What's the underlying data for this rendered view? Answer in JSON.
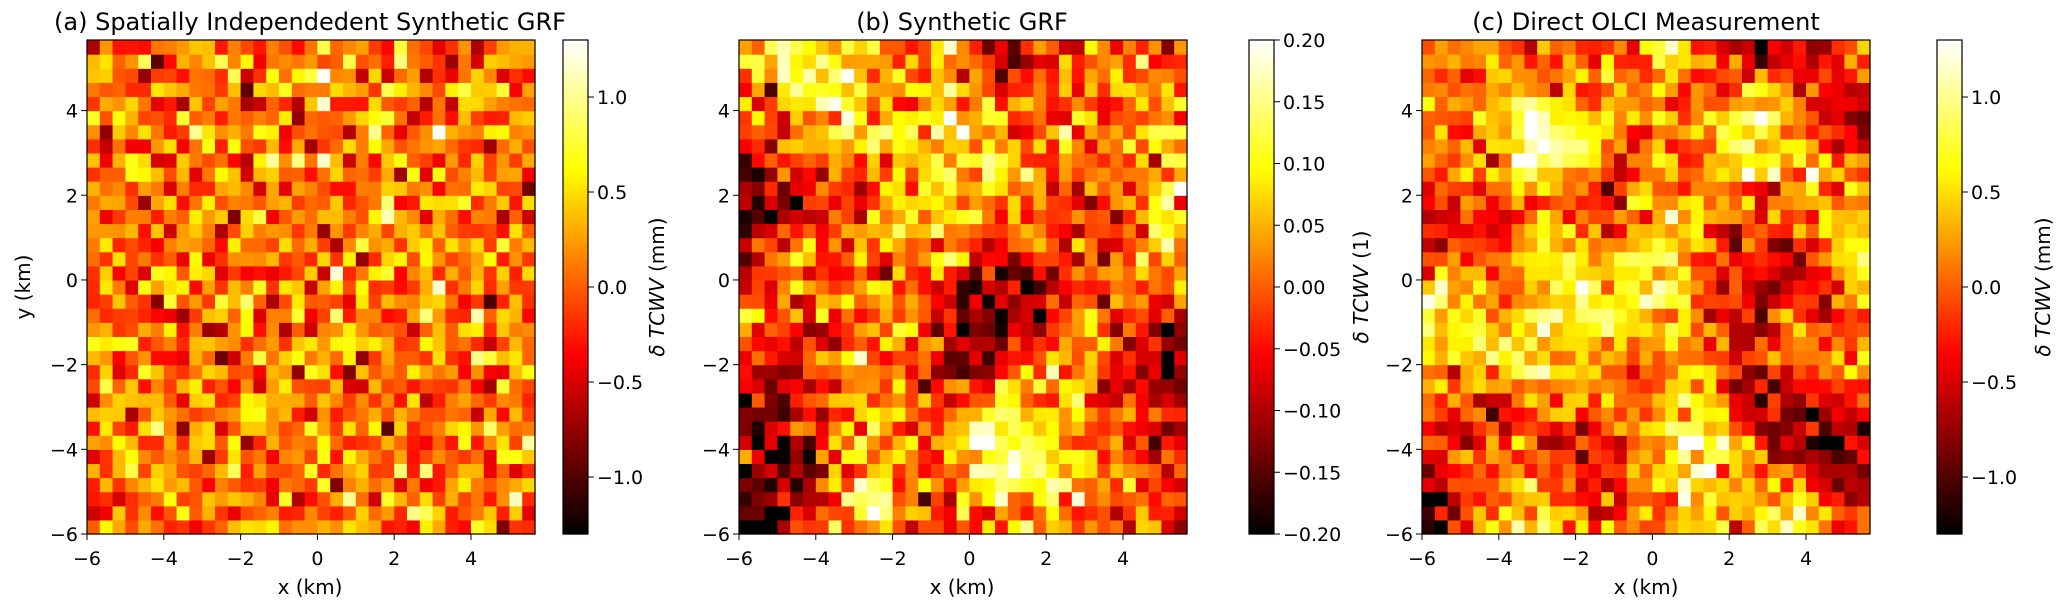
{
  "chart_data": [
    {
      "type": "heatmap",
      "title": "(a) Spatially Independedent Synthetic GRF",
      "xlabel": "x (km)",
      "ylabel": "y (km)",
      "colorbar_label_symbol": "δ TCWV",
      "colorbar_label_unit": "(mm)",
      "xlim": [
        -6,
        5.667
      ],
      "ylim": [
        -6,
        5.667
      ],
      "xticks": [
        -6,
        -4,
        -2,
        0,
        2,
        4
      ],
      "yticks": [
        -6,
        -4,
        -2,
        0,
        2,
        4
      ],
      "grid_cells": [
        35,
        35
      ],
      "clim": [
        -1.3,
        1.3
      ],
      "cbar_ticks": [
        -1.0,
        -0.5,
        0.0,
        0.5,
        1.0
      ],
      "cbar_tick_labels": [
        "−1.0",
        "−0.5",
        "0.0",
        "0.5",
        "1.0"
      ],
      "colormap": "hot",
      "field": {
        "kind": "independent",
        "mean": 0.1,
        "std": 0.38,
        "seed": 11,
        "smoothing": 0
      }
    },
    {
      "type": "heatmap",
      "title": "(b) Synthetic GRF",
      "xlabel": "x (km)",
      "ylabel": "",
      "colorbar_label_symbol": "δ TCWV",
      "colorbar_label_unit": "(1)",
      "xlim": [
        -6,
        5.667
      ],
      "ylim": [
        -6,
        5.667
      ],
      "xticks": [
        -6,
        -4,
        -2,
        0,
        2,
        4
      ],
      "yticks": [
        -6,
        -4,
        -2,
        0,
        2,
        4
      ],
      "grid_cells": [
        35,
        35
      ],
      "clim": [
        -0.2,
        0.2
      ],
      "cbar_ticks": [
        -0.2,
        -0.15,
        -0.1,
        -0.05,
        0.0,
        0.05,
        0.1,
        0.15,
        0.2
      ],
      "cbar_tick_labels": [
        "−0.20",
        "−0.15",
        "−0.10",
        "−0.05",
        "0.00",
        "0.05",
        "0.10",
        "0.15",
        "0.20"
      ],
      "colormap": "hot",
      "field": {
        "kind": "correlated",
        "mean": 0.0,
        "std": 0.085,
        "seed": 23,
        "smoothing": 3
      }
    },
    {
      "type": "heatmap",
      "title": "(c) Direct OLCI Measurement",
      "xlabel": "x (km)",
      "ylabel": "",
      "colorbar_label_symbol": "δ TCWV",
      "colorbar_label_unit": "(mm)",
      "xlim": [
        -6,
        5.667
      ],
      "ylim": [
        -6,
        5.667
      ],
      "xticks": [
        -6,
        -4,
        -2,
        0,
        2,
        4
      ],
      "yticks": [
        -6,
        -4,
        -2,
        0,
        2,
        4
      ],
      "grid_cells": [
        35,
        35
      ],
      "clim": [
        -1.3,
        1.3
      ],
      "cbar_ticks": [
        -1.0,
        -0.5,
        0.0,
        0.5,
        1.0
      ],
      "cbar_tick_labels": [
        "−1.0",
        "−0.5",
        "0.0",
        "0.5",
        "1.0"
      ],
      "colormap": "hot",
      "field": {
        "kind": "correlated",
        "mean": 0.1,
        "std": 0.5,
        "seed": 47,
        "smoothing": 2
      }
    }
  ],
  "tick_labels": [
    "−6",
    "−4",
    "−2",
    "0",
    "2",
    "4"
  ]
}
